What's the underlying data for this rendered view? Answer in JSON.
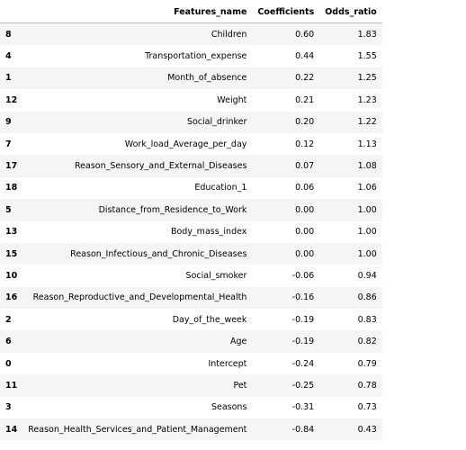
{
  "table": {
    "columns": [
      "",
      "Features_name",
      "Coefficients",
      "Odds_ratio"
    ],
    "rows": [
      {
        "index": "8",
        "feature": "Children",
        "coef": "0.60",
        "odds": "1.83"
      },
      {
        "index": "4",
        "feature": "Transportation_expense",
        "coef": "0.44",
        "odds": "1.55"
      },
      {
        "index": "1",
        "feature": "Month_of_absence",
        "coef": "0.22",
        "odds": "1.25"
      },
      {
        "index": "12",
        "feature": "Weight",
        "coef": "0.21",
        "odds": "1.23"
      },
      {
        "index": "9",
        "feature": "Social_drinker",
        "coef": "0.20",
        "odds": "1.22"
      },
      {
        "index": "7",
        "feature": "Work_load_Average_per_day",
        "coef": "0.12",
        "odds": "1.13"
      },
      {
        "index": "17",
        "feature": "Reason_Sensory_and_External_Diseases",
        "coef": "0.07",
        "odds": "1.08"
      },
      {
        "index": "18",
        "feature": "Education_1",
        "coef": "0.06",
        "odds": "1.06"
      },
      {
        "index": "5",
        "feature": "Distance_from_Residence_to_Work",
        "coef": "0.00",
        "odds": "1.00"
      },
      {
        "index": "13",
        "feature": "Body_mass_index",
        "coef": "0.00",
        "odds": "1.00"
      },
      {
        "index": "15",
        "feature": "Reason_Infectious_and_Chronic_Diseases",
        "coef": "0.00",
        "odds": "1.00"
      },
      {
        "index": "10",
        "feature": "Social_smoker",
        "coef": "-0.06",
        "odds": "0.94"
      },
      {
        "index": "16",
        "feature": "Reason_Reproductive_and_Developmental_Health",
        "coef": "-0.16",
        "odds": "0.86"
      },
      {
        "index": "2",
        "feature": "Day_of_the_week",
        "coef": "-0.19",
        "odds": "0.83"
      },
      {
        "index": "6",
        "feature": "Age",
        "coef": "-0.19",
        "odds": "0.82"
      },
      {
        "index": "0",
        "feature": "Intercept",
        "coef": "-0.24",
        "odds": "0.79"
      },
      {
        "index": "11",
        "feature": "Pet",
        "coef": "-0.25",
        "odds": "0.78"
      },
      {
        "index": "3",
        "feature": "Seasons",
        "coef": "-0.31",
        "odds": "0.73"
      },
      {
        "index": "14",
        "feature": "Reason_Health_Services_and_Patient_Management",
        "coef": "-0.84",
        "odds": "0.43"
      }
    ]
  }
}
